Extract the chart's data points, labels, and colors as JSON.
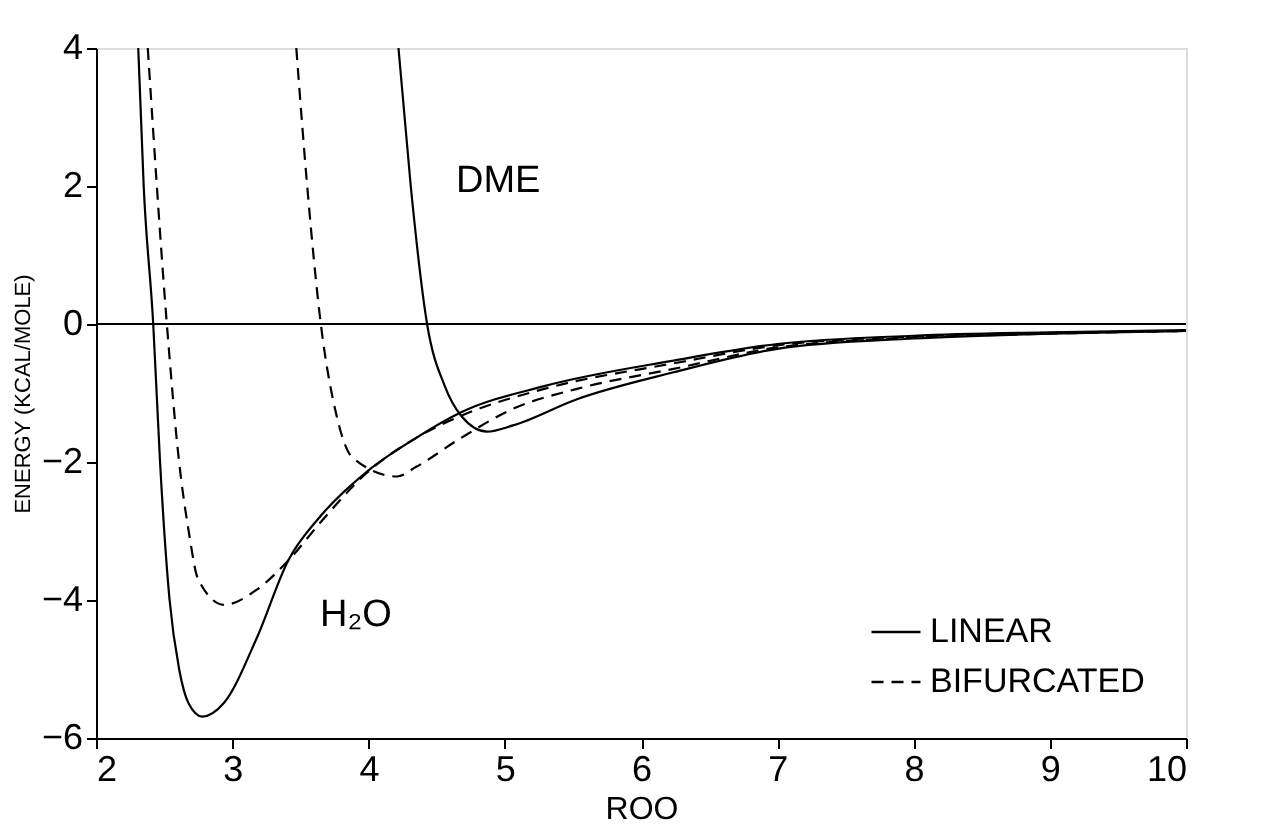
{
  "chart_data": {
    "type": "line",
    "xlabel": "ROO",
    "ylabel": "ENERGY (KCAL/MOLE)",
    "xlim": [
      2,
      10
    ],
    "ylim": [
      -6,
      4
    ],
    "xticks": [
      2,
      3,
      4,
      5,
      6,
      7,
      8,
      9,
      10
    ],
    "yticks": [
      -6,
      -4,
      -2,
      0,
      2,
      4
    ],
    "grid": false,
    "legend": "bottom right",
    "marker": "none",
    "series": [
      {
        "name": "LINEAR",
        "color": "#000000",
        "line_style": "solid",
        "x": [
          2.31,
          2.35,
          2.42,
          2.47,
          2.54,
          2.61,
          2.68,
          2.78,
          2.94,
          3.18,
          3.41,
          3.65,
          4.0,
          4.35,
          4.68,
          5.29,
          6.24,
          7,
          8,
          9,
          10
        ],
        "values": [
          4,
          2,
          0,
          -2,
          -4,
          -5,
          -5.5,
          -5.69,
          -5.49,
          -4.55,
          -3.43,
          -2.78,
          -2.12,
          -1.65,
          -1.28,
          -0.9,
          -0.53,
          -0.29,
          -0.17,
          -0.12,
          -0.09
        ]
      },
      {
        "name": "BIFURCATED",
        "color": "#000000",
        "line_style": "dashed",
        "x": [
          2.38,
          2.52,
          2.61,
          2.68,
          2.75,
          2.94,
          3.18,
          3.41,
          3.65,
          3.98,
          4.35,
          4.68,
          5.29,
          6.24,
          7,
          8,
          9,
          10
        ],
        "values": [
          4,
          0,
          -2,
          -3,
          -3.7,
          -4.07,
          -3.85,
          -3.43,
          -2.87,
          -2.17,
          -1.65,
          -1.33,
          -0.94,
          -0.57,
          -0.31,
          -0.18,
          -0.13,
          -0.1
        ]
      },
      {
        "color": "#000000",
        "line_style": "dashed",
        "x": [
          3.47,
          3.55,
          3.65,
          3.76,
          3.88,
          4.21,
          4.35,
          4.68,
          5.06,
          5.53,
          6.24,
          7,
          8,
          9,
          10
        ],
        "values": [
          4,
          2,
          0,
          -1.28,
          -1.93,
          -2.21,
          -2.07,
          -1.65,
          -1.23,
          -0.94,
          -0.65,
          -0.34,
          -0.2,
          -0.14,
          -0.1
        ]
      },
      {
        "color": "#000000",
        "line_style": "solid",
        "x": [
          4.22,
          4.31,
          4.43,
          4.56,
          4.68,
          4.87,
          5.06,
          5.53,
          6.24,
          7,
          8,
          9,
          10
        ],
        "values": [
          4,
          2,
          0,
          -0.9,
          -1.33,
          -1.56,
          -1.47,
          -1.09,
          -0.7,
          -0.36,
          -0.21,
          -0.14,
          -0.1
        ]
      }
    ],
    "ref_lines": [
      {
        "axis": "y",
        "value": 0,
        "color": "#000000",
        "line_style": "solid"
      }
    ],
    "annotations": [
      "DME",
      "H₂O"
    ]
  }
}
